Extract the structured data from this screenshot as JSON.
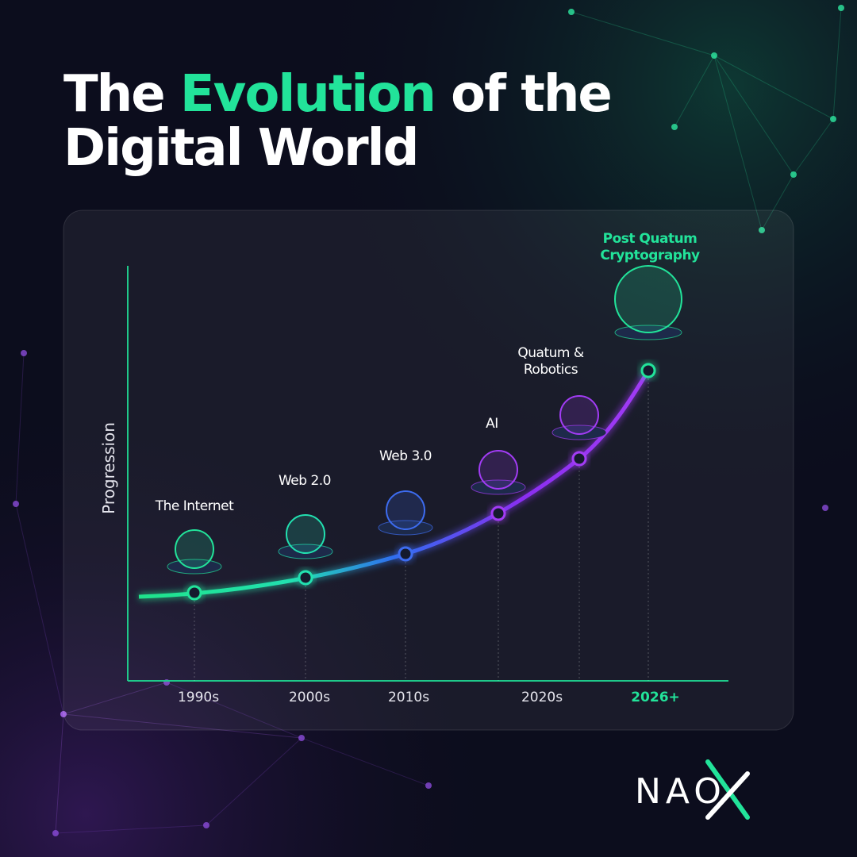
{
  "title": {
    "line1_start": "The",
    "highlight": "Evolution",
    "line1_end": "of the",
    "line2": "Digital World"
  },
  "y_axis_label": "Progression",
  "x_labels": [
    "1990s",
    "2000s",
    "2010s",
    "2020s",
    "2026+"
  ],
  "milestones": [
    {
      "lines": [
        "The Internet"
      ]
    },
    {
      "lines": [
        "Web 2.0"
      ]
    },
    {
      "lines": [
        "Web 3.0"
      ]
    },
    {
      "lines": [
        "AI"
      ]
    },
    {
      "lines": [
        "Quatum &",
        "Robotics"
      ]
    },
    {
      "lines": [
        "Post Quatum",
        "Cryptography"
      ]
    }
  ],
  "brand": "NAO"
}
